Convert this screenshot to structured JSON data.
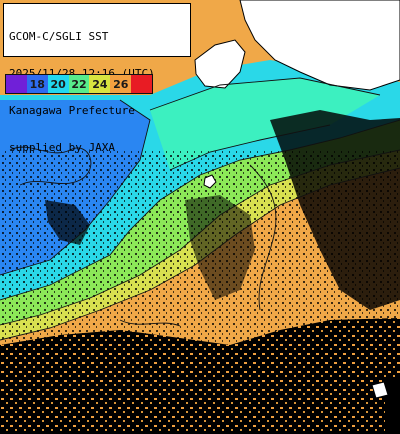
{
  "caption": {
    "line1": "GCOM-C/SGLI SST",
    "line2": "2025/11/28 12:16 (UTC)",
    "line3": "Kanagawa Prefecture",
    "line4": "supplied by JAXA"
  },
  "legend": {
    "ticks": [
      "",
      "18",
      "20",
      "22",
      "24",
      "26",
      ""
    ],
    "colors": [
      "#7020d8",
      "#2e6cf0",
      "#22d8f0",
      "#58ec8c",
      "#d8e440",
      "#f4a040",
      "#e81c24"
    ]
  },
  "palette": {
    "cold": "#2a86f2",
    "cyan": "#2ad8e8",
    "aqua": "#3cf0c0",
    "green": "#8ce858",
    "yellow": "#d8e050",
    "orange": "#f2a848",
    "deep_orange": "#e8883a",
    "land": "#ffffff",
    "cloud": "#000000"
  }
}
